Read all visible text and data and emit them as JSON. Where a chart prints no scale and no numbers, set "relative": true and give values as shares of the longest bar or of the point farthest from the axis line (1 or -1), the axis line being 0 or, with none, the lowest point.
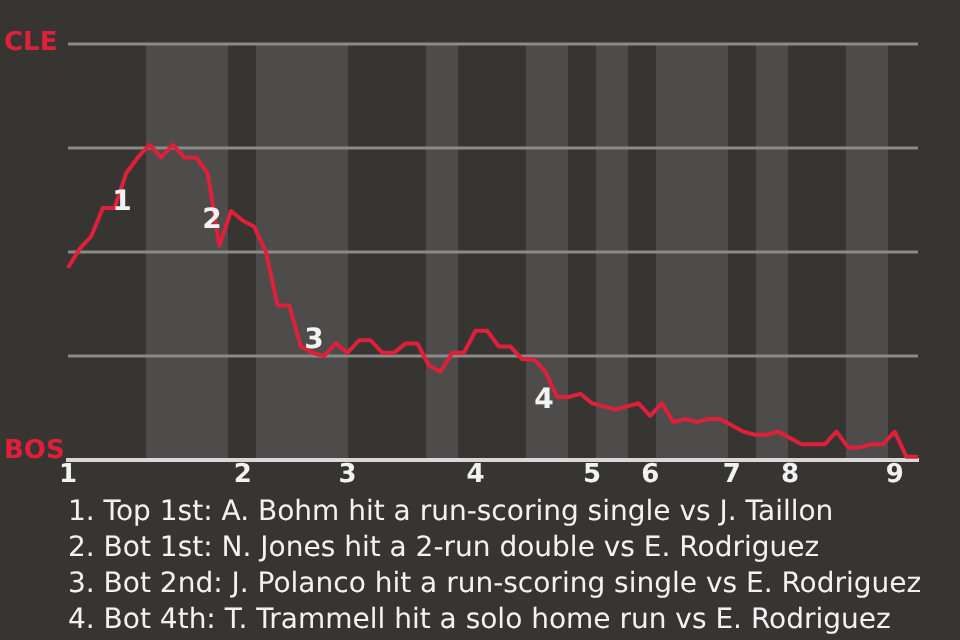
{
  "chart_data": {
    "type": "line",
    "relative": true,
    "categories": [
      "1",
      null,
      null,
      null,
      null,
      null,
      null,
      null,
      null,
      null,
      null,
      null,
      null,
      null,
      null,
      "2",
      null,
      null,
      null,
      null,
      null,
      null,
      null,
      null,
      "3",
      null,
      null,
      null,
      null,
      null,
      null,
      null,
      null,
      null,
      null,
      "4",
      null,
      null,
      null,
      null,
      null,
      null,
      null,
      null,
      null,
      "5",
      null,
      null,
      null,
      null,
      "6",
      null,
      null,
      null,
      null,
      null,
      null,
      "7",
      null,
      null,
      null,
      null,
      "8",
      null,
      null,
      null,
      null,
      null,
      null,
      null,
      null,
      "9",
      null,
      null
    ],
    "series": [
      {
        "color": "#e0203a",
        "values": [
          0.61,
          0.67,
          0.71,
          0.8,
          0.8,
          0.91,
          0.96,
          1,
          0.96,
          1,
          0.96,
          0.96,
          0.91,
          0.68,
          0.79,
          0.76,
          0.74,
          0.66,
          0.49,
          0.49,
          0.36,
          0.34,
          0.33,
          0.37,
          0.34,
          0.38,
          0.38,
          0.34,
          0.34,
          0.37,
          0.37,
          0.3,
          0.28,
          0.34,
          0.34,
          0.41,
          0.41,
          0.36,
          0.36,
          0.32,
          0.32,
          0.28,
          0.2,
          0.2,
          0.21,
          0.18,
          0.17,
          0.16,
          0.17,
          0.18,
          0.14,
          0.18,
          0.12,
          0.13,
          0.12,
          0.13,
          0.13,
          0.11,
          0.09,
          0.08,
          0.08,
          0.09,
          0.07,
          0.05,
          0.05,
          0.05,
          0.09,
          0.04,
          0.04,
          0.05,
          0.05,
          0.09,
          0.01,
          0.01
        ]
      }
    ],
    "ref_lines": [
      {
        "axis": "y",
        "value": 0.33,
        "color": "#8a8a88"
      },
      {
        "axis": "y",
        "value": 0.66,
        "color": "#8a8a88"
      },
      {
        "axis": "y",
        "value": 0.99,
        "color": "#8a8a88"
      },
      {
        "axis": "y",
        "value": 1.32,
        "color": "#8a8a88"
      }
    ],
    "legend": false,
    "marker": "none",
    "line_style": "solid",
    "annotations": [
      "CLE",
      "BOS",
      "1",
      "2",
      "3",
      "4",
      "1. Top 1st: A. Bohm hit a run-scoring single vs J. Taillon",
      "2. Bot 1st: N. Jones hit a 2-run double vs E. Rodriguez",
      "3. Bot 2nd: J. Polanco hit a run-scoring single vs E. Rodriguez",
      "4. Bot 4th: T. Trammell hit a solo home run vs E. Rodriguez"
    ]
  }
}
